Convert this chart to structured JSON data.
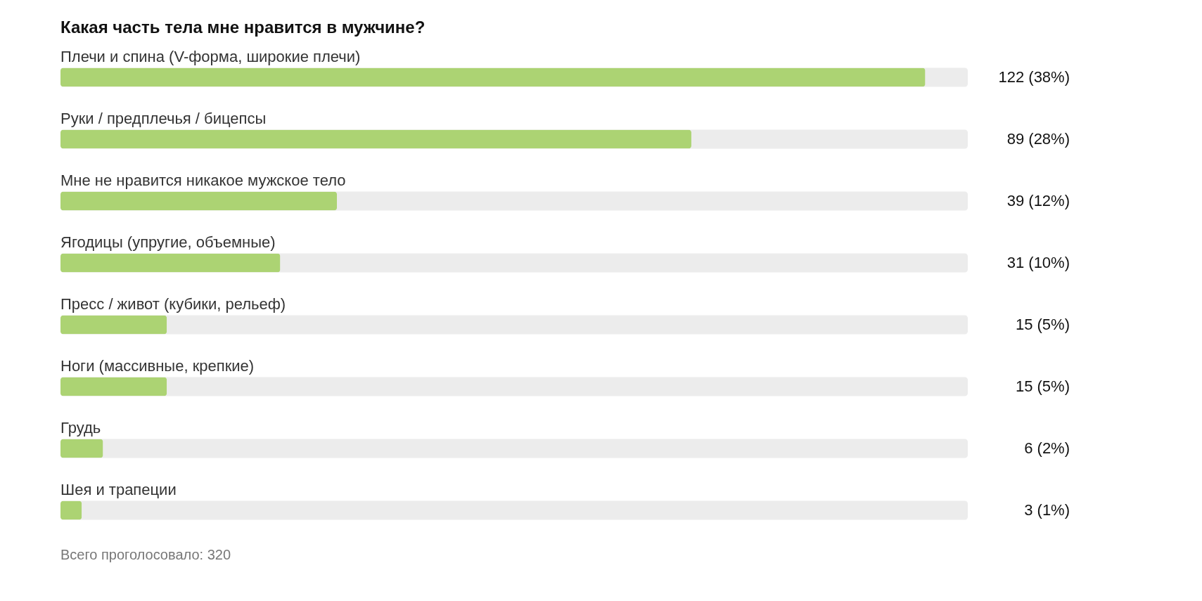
{
  "chart_data": {
    "type": "bar",
    "orientation": "horizontal",
    "title": "Какая часть тела мне нравится в мужчине?",
    "categories": [
      "Плечи и спина (V-форма, широкие плечи)",
      "Руки / предплечья / бицепсы",
      "Мне не нравится никакое мужское тело",
      "Ягодицы (упругие, объемные)",
      "Пресс / живот (кубики, рельеф)",
      "Ноги (массивные, крепкие)",
      "Грудь",
      "Шея и трапеции"
    ],
    "values": [
      122,
      89,
      39,
      31,
      15,
      15,
      6,
      3
    ],
    "value_labels": [
      "122 (38%)",
      "89 (28%)",
      "39 (12%)",
      "31 (10%)",
      "15 (5%)",
      "15 (5%)",
      "6 (2%)",
      "3 (1%)"
    ],
    "color": "#acd373",
    "xlim": [
      0,
      128
    ],
    "tick_labels": false,
    "annotations": [
      "Всего проголосовало: 320"
    ]
  }
}
